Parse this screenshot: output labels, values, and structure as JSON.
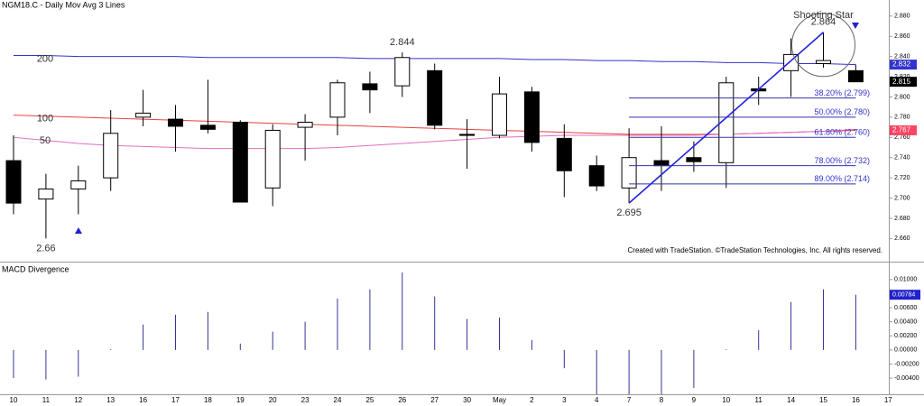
{
  "chart_data": [
    {
      "type": "candlestick",
      "title": "NGM18.C - Daily  Mov Avg 3 Lines",
      "categories": [
        "10",
        "11",
        "12",
        "13",
        "16",
        "17",
        "18",
        "19",
        "20",
        "23",
        "24",
        "25",
        "26",
        "27",
        "30",
        "May",
        "2",
        "3",
        "4",
        "7",
        "8",
        "9",
        "10",
        "11",
        "14",
        "15",
        "16",
        "17"
      ],
      "open": [
        2.737,
        2.699,
        2.709,
        2.72,
        2.78,
        2.778,
        2.772,
        2.775,
        2.71,
        2.77,
        2.78,
        2.813,
        2.811,
        2.826,
        2.763,
        2.762,
        2.805,
        2.759,
        2.732,
        2.71,
        2.737,
        2.74,
        2.735,
        2.808,
        2.826,
        2.833,
        2.826,
        null
      ],
      "high": [
        2.762,
        2.724,
        2.732,
        2.787,
        2.807,
        2.792,
        2.817,
        2.777,
        2.773,
        2.783,
        2.817,
        2.825,
        2.844,
        2.833,
        2.778,
        2.82,
        2.81,
        2.773,
        2.742,
        2.769,
        2.771,
        2.756,
        2.82,
        2.82,
        2.858,
        2.864,
        2.832,
        null
      ],
      "low": [
        2.684,
        2.66,
        2.684,
        2.707,
        2.771,
        2.746,
        2.764,
        2.696,
        2.692,
        2.737,
        2.762,
        2.784,
        2.8,
        2.768,
        2.729,
        2.759,
        2.746,
        2.701,
        2.707,
        2.695,
        2.707,
        2.726,
        2.71,
        2.792,
        2.8,
        2.829,
        2.815,
        null
      ],
      "close": [
        2.695,
        2.709,
        2.717,
        2.764,
        2.784,
        2.771,
        2.768,
        2.696,
        2.767,
        2.775,
        2.814,
        2.807,
        2.839,
        2.772,
        2.762,
        2.803,
        2.755,
        2.727,
        2.712,
        2.74,
        2.732,
        2.736,
        2.814,
        2.806,
        2.842,
        2.836,
        2.815,
        null
      ],
      "series": [
        {
          "name": "200",
          "color": "#3333cc",
          "values": [
            2.841,
            2.841,
            2.84,
            2.84,
            2.84,
            2.84,
            2.839,
            2.839,
            2.839,
            2.839,
            2.839,
            2.838,
            2.838,
            2.838,
            2.838,
            2.838,
            2.837,
            2.837,
            2.836,
            2.836,
            2.835,
            2.835,
            2.834,
            2.834,
            2.833,
            2.833,
            2.832,
            null
          ]
        },
        {
          "name": "100",
          "color": "#e84040",
          "values": [
            2.782,
            2.781,
            2.78,
            2.779,
            2.778,
            2.777,
            2.776,
            2.775,
            2.774,
            2.773,
            2.772,
            2.771,
            2.77,
            2.769,
            2.768,
            2.767,
            2.766,
            2.765,
            2.764,
            2.763,
            2.763,
            2.763,
            2.763,
            2.764,
            2.765,
            2.766,
            2.767,
            null
          ]
        },
        {
          "name": "50",
          "color": "#e070c0",
          "values": [
            2.76,
            2.757,
            2.754,
            2.752,
            2.751,
            2.75,
            2.749,
            2.749,
            2.749,
            2.749,
            2.75,
            2.752,
            2.754,
            2.756,
            2.758,
            2.76,
            2.761,
            2.762,
            2.762,
            2.762,
            2.762,
            2.762,
            2.763,
            2.764,
            2.765,
            2.766,
            2.768,
            null
          ]
        }
      ],
      "ylim": [
        2.638,
        2.895
      ],
      "yticks": [
        {
          "value": 2.88,
          "label": "2.880"
        },
        {
          "value": 2.86,
          "label": "2.860"
        },
        {
          "value": 2.84,
          "label": "2.840"
        },
        {
          "value": 2.82,
          "label": "2.820"
        },
        {
          "value": 2.8,
          "label": "2.800"
        },
        {
          "value": 2.78,
          "label": "2.780"
        },
        {
          "value": 2.76,
          "label": "2.760"
        },
        {
          "value": 2.74,
          "label": "2.740"
        },
        {
          "value": 2.72,
          "label": "2.720"
        },
        {
          "value": 2.7,
          "label": "2.700"
        },
        {
          "value": 2.68,
          "label": "2.680"
        },
        {
          "value": 2.66,
          "label": "2.660"
        }
      ],
      "fib_levels": [
        {
          "value": 2.799,
          "label": "38.20% (2.799)"
        },
        {
          "value": 2.78,
          "label": "50.00% (2.780)"
        },
        {
          "value": 2.76,
          "label": "61.80% (2.760)"
        },
        {
          "value": 2.732,
          "label": "78.00% (2.732)"
        },
        {
          "value": 2.714,
          "label": "89.00% (2.714)"
        }
      ],
      "price_labels": [
        2.66,
        2.844,
        2.695,
        2.864
      ],
      "annotation": "Shooting Star",
      "credit": "Created with TradeStation. ©TradeStation Technologies, Inc. All rights reserved."
    },
    {
      "type": "bar",
      "title": "MACD Divergence",
      "color": "#333399",
      "values": [
        -0.004,
        -0.0042,
        -0.0038,
        0.0001,
        0.0036,
        0.005,
        0.0054,
        0.0009,
        0.0026,
        0.004,
        0.0073,
        0.0086,
        0.011,
        0.0076,
        0.0044,
        0.0046,
        0.0014,
        -0.0026,
        -0.0063,
        -0.0063,
        -0.0063,
        -0.0054,
        0.0001,
        0.0028,
        0.0068,
        0.0086,
        0.00784,
        null
      ],
      "ylim": [
        -0.0063,
        0.0119
      ],
      "yticks": [
        {
          "value": 0.01,
          "label": "0.01000"
        },
        {
          "value": 0.008,
          "label": "0.00800"
        },
        {
          "value": 0.006,
          "label": "0.00600"
        },
        {
          "value": 0.004,
          "label": "0.00400"
        },
        {
          "value": 0.002,
          "label": "0.00200"
        },
        {
          "value": 0,
          "label": "0.00000"
        },
        {
          "value": -0.002,
          "label": "-0.00200"
        },
        {
          "value": -0.004,
          "label": "-0.00400"
        }
      ]
    }
  ]
}
